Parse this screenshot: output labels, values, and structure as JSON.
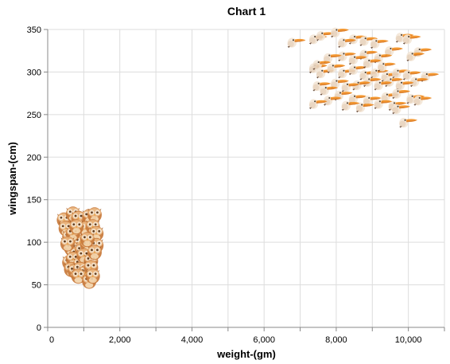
{
  "chart_data": {
    "type": "scatter",
    "title": "Chart 1",
    "xlabel": "weight-(gm)",
    "ylabel": "wingspan-(cm)",
    "xlim": [
      0,
      11000
    ],
    "ylim": [
      0,
      350
    ],
    "x_ticks": [
      0,
      2000,
      4000,
      6000,
      8000,
      10000
    ],
    "x_tick_labels": [
      "0",
      "2,000",
      "4,000",
      "6,000",
      "8,000",
      "10,000"
    ],
    "y_ticks": [
      0,
      50,
      100,
      150,
      200,
      250,
      300,
      350
    ],
    "y_tick_labels": [
      "0",
      "50",
      "100",
      "150",
      "200",
      "250",
      "300",
      "350"
    ],
    "grid": true,
    "colors": {
      "owl_body": "#c8793a",
      "owl_face": "#f2d2a8",
      "toucan_beak": "#f4901e",
      "toucan_body": "#f3e6d6"
    },
    "series": [
      {
        "marker": "owl-icon",
        "points": [
          [
            450,
            128
          ],
          [
            500,
            118
          ],
          [
            700,
            135
          ],
          [
            850,
            130
          ],
          [
            1150,
            132
          ],
          [
            1300,
            134
          ],
          [
            600,
            108
          ],
          [
            900,
            102
          ],
          [
            1050,
            118
          ],
          [
            1250,
            120
          ],
          [
            1350,
            112
          ],
          [
            700,
            112
          ],
          [
            650,
            95
          ],
          [
            800,
            88
          ],
          [
            950,
            92
          ],
          [
            1100,
            98
          ],
          [
            1350,
            98
          ],
          [
            550,
            100
          ],
          [
            600,
            78
          ],
          [
            700,
            82
          ],
          [
            900,
            76
          ],
          [
            1000,
            86
          ],
          [
            1200,
            80
          ],
          [
            1300,
            90
          ],
          [
            650,
            70
          ],
          [
            750,
            68
          ],
          [
            900,
            70
          ],
          [
            1050,
            66
          ],
          [
            1200,
            72
          ],
          [
            850,
            62
          ],
          [
            1150,
            56
          ],
          [
            1250,
            62
          ],
          [
            1100,
            105
          ],
          [
            800,
            120
          ]
        ]
      },
      {
        "marker": "toucan-icon",
        "points": [
          [
            6900,
            336
          ],
          [
            7500,
            340
          ],
          [
            7700,
            344
          ],
          [
            8100,
            348
          ],
          [
            8600,
            340
          ],
          [
            8900,
            338
          ],
          [
            9200,
            335
          ],
          [
            9900,
            342
          ],
          [
            10100,
            340
          ],
          [
            8300,
            336
          ],
          [
            10400,
            325
          ],
          [
            10200,
            320
          ],
          [
            9600,
            326
          ],
          [
            9300,
            318
          ],
          [
            8900,
            322
          ],
          [
            8600,
            316
          ],
          [
            8300,
            320
          ],
          [
            7900,
            318
          ],
          [
            7500,
            306
          ],
          [
            7700,
            300
          ],
          [
            8000,
            306
          ],
          [
            8300,
            300
          ],
          [
            8600,
            304
          ],
          [
            8900,
            298
          ],
          [
            9200,
            300
          ],
          [
            9500,
            296
          ],
          [
            9800,
            300
          ],
          [
            10100,
            298
          ],
          [
            10600,
            296
          ],
          [
            10300,
            290
          ],
          [
            9900,
            286
          ],
          [
            9600,
            290
          ],
          [
            9300,
            286
          ],
          [
            9000,
            290
          ],
          [
            8700,
            286
          ],
          [
            8400,
            284
          ],
          [
            8100,
            288
          ],
          [
            7800,
            280
          ],
          [
            7600,
            285
          ],
          [
            8200,
            274
          ],
          [
            8600,
            270
          ],
          [
            9000,
            268
          ],
          [
            9500,
            272
          ],
          [
            9800,
            276
          ],
          [
            10200,
            270
          ],
          [
            10400,
            268
          ],
          [
            9700,
            262
          ],
          [
            9300,
            264
          ],
          [
            8800,
            260
          ],
          [
            8400,
            262
          ],
          [
            7900,
            268
          ],
          [
            7500,
            264
          ],
          [
            10000,
            242
          ],
          [
            9800,
            258
          ],
          [
            7600,
            310
          ],
          [
            9000,
            312
          ],
          [
            9400,
            308
          ]
        ]
      }
    ]
  }
}
